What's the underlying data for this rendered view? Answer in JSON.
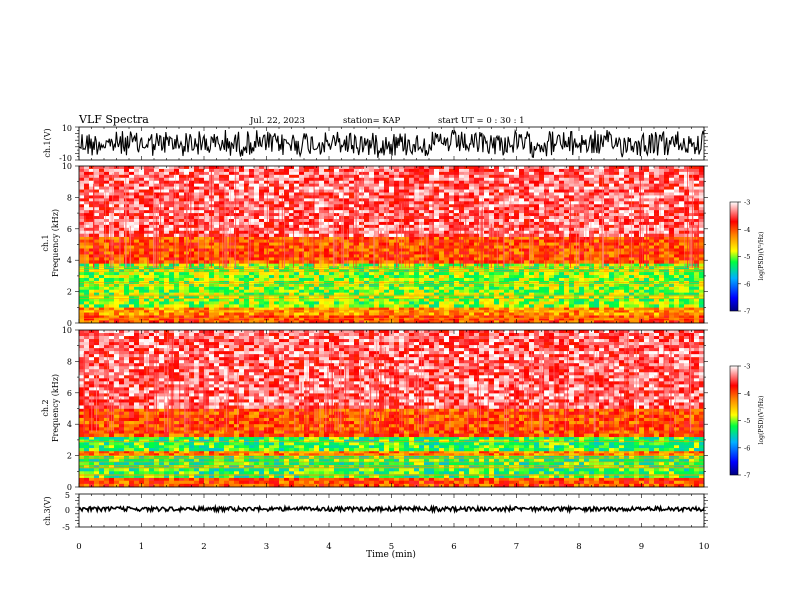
{
  "header": {
    "title": "VLF Spectra",
    "date": "Jul. 22, 2023",
    "station": "station= KAP",
    "start": "start UT =  0 : 30 : 1"
  },
  "chart_data": [
    {
      "type": "line",
      "panel": "ch1-waveform",
      "ylabel": "ch.1(V)",
      "ylim": [
        -10,
        10
      ],
      "yticks": [
        "10",
        "-10"
      ],
      "xlim": [
        0,
        10
      ],
      "fill": "dense black waveform spanning roughly -10 to 10 V"
    },
    {
      "type": "heatmap",
      "panel": "ch1-spectrogram",
      "ylabel_top": "ch.1",
      "ylabel": "Frequency (kHz)",
      "ylim": [
        0,
        10
      ],
      "yticks": [
        "0",
        "2",
        "4",
        "6",
        "8",
        "10"
      ],
      "xlim": [
        0,
        10
      ],
      "colorbar": {
        "label": "log(PSD)(V²/Hz)",
        "range": [
          -7,
          -3
        ],
        "ticks": [
          "-3",
          "-4",
          "-5",
          "-6",
          "-7"
        ]
      },
      "bands": [
        {
          "from": 0.0,
          "to": 0.5,
          "level": -4.0
        },
        {
          "from": 0.5,
          "to": 1.0,
          "level": -4.3
        },
        {
          "from": 1.0,
          "to": 3.8,
          "level": -5.0
        },
        {
          "from": 3.8,
          "to": 5.5,
          "level": -4.0
        },
        {
          "from": 5.5,
          "to": 10.0,
          "level": -3.4
        }
      ]
    },
    {
      "type": "heatmap",
      "panel": "ch2-spectrogram",
      "ylabel_top": "ch.2",
      "ylabel": "Frequency (kHz)",
      "ylim": [
        0,
        10
      ],
      "yticks": [
        "0",
        "2",
        "4",
        "6",
        "8",
        "10"
      ],
      "xlim": [
        0,
        10
      ],
      "colorbar": {
        "label": "log(PSD)(V²/Hz)",
        "range": [
          -7,
          -3
        ],
        "ticks": [
          "-3",
          "-4",
          "-5",
          "-6",
          "-7"
        ]
      },
      "bands": [
        {
          "from": 0.0,
          "to": 0.6,
          "level": -4.0
        },
        {
          "from": 0.6,
          "to": 2.0,
          "level": -5.2
        },
        {
          "from": 2.0,
          "to": 2.3,
          "level": -4.2
        },
        {
          "from": 2.3,
          "to": 3.2,
          "level": -5.2
        },
        {
          "from": 3.2,
          "to": 5.0,
          "level": -4.0
        },
        {
          "from": 5.0,
          "to": 10.0,
          "level": -3.4
        }
      ]
    },
    {
      "type": "line",
      "panel": "ch3-waveform",
      "ylabel": "ch.3(V)",
      "ylim": [
        -5,
        5
      ],
      "yticks": [
        "5",
        "0",
        "-5"
      ],
      "xlim": [
        0,
        10
      ],
      "xticks": [
        "0",
        "1",
        "2",
        "3",
        "4",
        "5",
        "6",
        "7",
        "8",
        "9",
        "10"
      ],
      "xlabel": "Time (min)",
      "fill": "thin black band near 0 V"
    }
  ],
  "colors": {
    "scale": [
      "#000080",
      "#0000ff",
      "#00a0ff",
      "#00ff40",
      "#c0ff00",
      "#ffff00",
      "#ff8000",
      "#ff0000",
      "#ffffff"
    ]
  }
}
